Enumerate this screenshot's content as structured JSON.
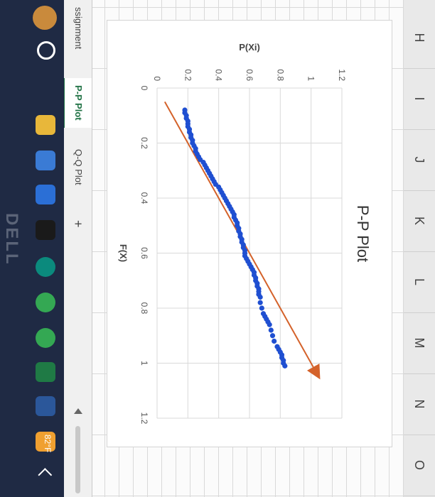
{
  "columns": [
    "H",
    "I",
    "J",
    "K",
    "L",
    "M",
    "N",
    "O"
  ],
  "sheet_tabs": [
    {
      "label": "ssignment",
      "active": false
    },
    {
      "label": "P-P Plot",
      "active": true
    },
    {
      "label": "Q-Q Plot",
      "active": false
    }
  ],
  "add_sheet_symbol": "+",
  "taskbar": {
    "temperature": "82°F",
    "dell_label": "DELL",
    "icons": [
      "search-icon",
      "task-view-icon",
      "file-explorer-icon",
      "store-icon",
      "mail-icon",
      "dell-app-icon",
      "edge-icon",
      "chrome-icon",
      "chrome-icon",
      "excel-icon",
      "word-icon",
      "weather-icon"
    ]
  },
  "colors": {
    "points": "#1f4fd1",
    "reference_line": "#d4622a",
    "active_tab": "#217346"
  },
  "chart_data": {
    "type": "scatter",
    "title": "P-P Plot",
    "xlabel": "F(X)",
    "ylabel": "P(Xi)",
    "xlim": [
      0,
      1.2
    ],
    "ylim": [
      0,
      1.2
    ],
    "xticks": [
      "0",
      "0.2",
      "0.4",
      "0.6",
      "0.8",
      "1",
      "1.2"
    ],
    "yticks": [
      "0",
      "0.2",
      "0.4",
      "0.6",
      "0.8",
      "1",
      "1.2"
    ],
    "grid": true,
    "series": [
      {
        "kind": "points",
        "x": [
          0.08,
          0.09,
          0.1,
          0.11,
          0.12,
          0.13,
          0.14,
          0.15,
          0.16,
          0.17,
          0.18,
          0.19,
          0.2,
          0.21,
          0.22,
          0.23,
          0.24,
          0.25,
          0.26,
          0.27,
          0.28,
          0.29,
          0.3,
          0.31,
          0.32,
          0.33,
          0.34,
          0.35,
          0.36,
          0.37,
          0.38,
          0.39,
          0.4,
          0.41,
          0.42,
          0.43,
          0.44,
          0.45,
          0.46,
          0.47,
          0.48,
          0.49,
          0.5,
          0.51,
          0.52,
          0.53,
          0.54,
          0.55,
          0.56,
          0.57,
          0.58,
          0.59,
          0.6,
          0.61,
          0.62,
          0.63,
          0.64,
          0.65,
          0.66,
          0.67,
          0.68,
          0.69,
          0.7,
          0.71,
          0.72,
          0.73,
          0.74,
          0.75,
          0.76,
          0.78,
          0.8,
          0.82,
          0.83,
          0.84,
          0.85,
          0.86,
          0.88,
          0.9,
          0.92,
          0.94,
          0.95,
          0.96,
          0.97,
          0.98,
          0.99,
          1.0,
          1.01
        ],
        "y": [
          0.18,
          0.18,
          0.19,
          0.19,
          0.2,
          0.2,
          0.2,
          0.21,
          0.21,
          0.22,
          0.22,
          0.23,
          0.23,
          0.24,
          0.25,
          0.25,
          0.26,
          0.27,
          0.28,
          0.3,
          0.31,
          0.32,
          0.33,
          0.34,
          0.35,
          0.36,
          0.37,
          0.38,
          0.4,
          0.41,
          0.42,
          0.43,
          0.44,
          0.45,
          0.46,
          0.47,
          0.48,
          0.49,
          0.5,
          0.5,
          0.51,
          0.52,
          0.52,
          0.53,
          0.53,
          0.54,
          0.54,
          0.55,
          0.55,
          0.56,
          0.56,
          0.57,
          0.57,
          0.57,
          0.58,
          0.59,
          0.6,
          0.61,
          0.62,
          0.63,
          0.63,
          0.64,
          0.64,
          0.65,
          0.65,
          0.66,
          0.66,
          0.66,
          0.67,
          0.67,
          0.68,
          0.69,
          0.7,
          0.71,
          0.72,
          0.73,
          0.74,
          0.75,
          0.76,
          0.78,
          0.79,
          0.8,
          0.81,
          0.81,
          0.82,
          0.82,
          0.83
        ]
      },
      {
        "kind": "line",
        "x": [
          0.05,
          1.05
        ],
        "y": [
          0.05,
          1.05
        ]
      }
    ]
  }
}
